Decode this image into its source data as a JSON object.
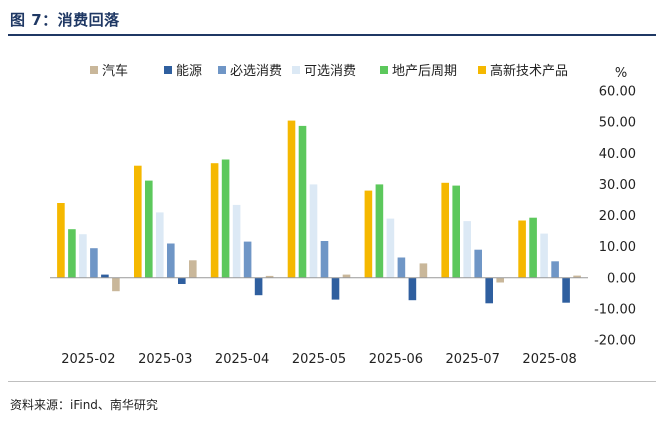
{
  "header": {
    "title": "图 7：消费回落"
  },
  "footer": {
    "source": "资料来源：iFind、南华研究"
  },
  "chart_data": {
    "type": "bar",
    "ylabel": "%",
    "ylim": [
      -20,
      60
    ],
    "ytick_step": 10,
    "ytick_decimals": 2,
    "grid": false,
    "legend_position": "top",
    "categories": [
      "2025-02",
      "2025-03",
      "2025-04",
      "2025-05",
      "2025-06",
      "2025-07",
      "2025-08"
    ],
    "series": [
      {
        "name": "高新技术产品",
        "color": "#f5b800",
        "values": [
          24.0,
          36.0,
          36.8,
          50.5,
          28.0,
          30.5,
          18.4
        ]
      },
      {
        "name": "地产后周期",
        "color": "#5cc85c",
        "values": [
          15.6,
          31.2,
          38.0,
          48.8,
          30.0,
          29.6,
          19.3
        ]
      },
      {
        "name": "可选消费",
        "color": "#dce9f5",
        "values": [
          14.0,
          21.0,
          23.4,
          30.0,
          19.0,
          18.2,
          14.2
        ]
      },
      {
        "name": "必选消费",
        "color": "#6f96c6",
        "values": [
          9.5,
          11.0,
          11.6,
          11.8,
          6.5,
          9.0,
          5.3
        ]
      },
      {
        "name": "能源",
        "color": "#2f5f9f",
        "values": [
          1.0,
          -2.0,
          -5.6,
          -7.0,
          -7.2,
          -8.2,
          -8.0
        ]
      },
      {
        "name": "汽车",
        "color": "#c9b79a",
        "values": [
          -4.3,
          5.6,
          0.6,
          1.0,
          4.6,
          -1.5,
          0.7
        ]
      }
    ],
    "legend_order": [
      "汽车",
      "能源",
      "必选消费",
      "可选消费",
      "地产后周期",
      "高新技术产品"
    ]
  }
}
